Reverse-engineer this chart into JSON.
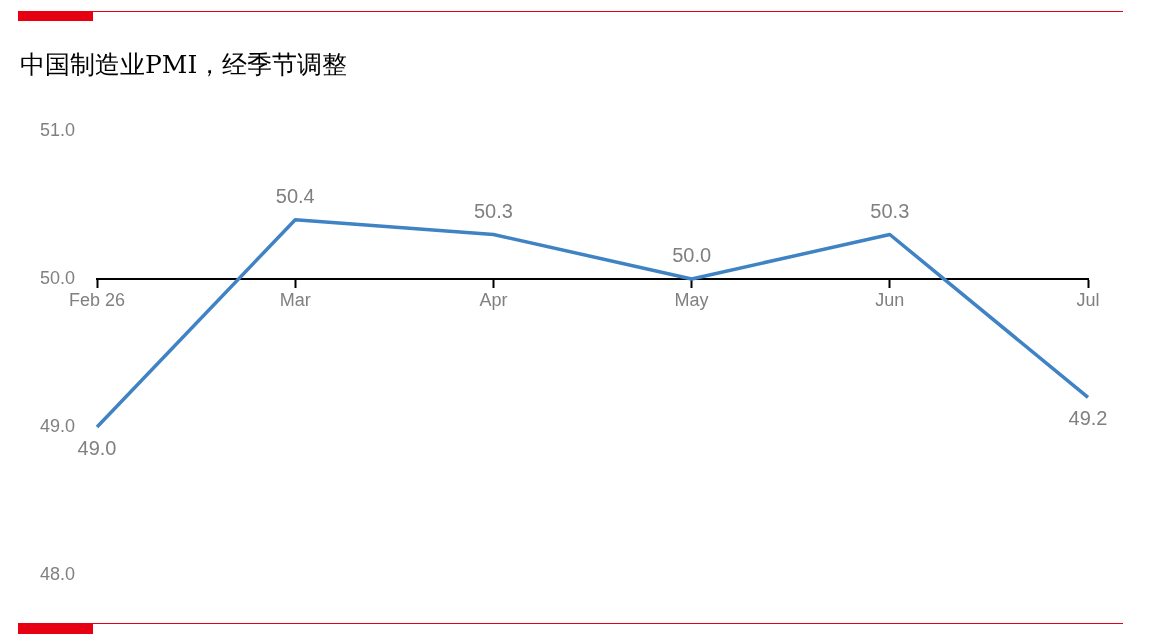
{
  "chart_data": {
    "type": "line",
    "title": "中国制造业PMI，经季节调整",
    "categories": [
      "Feb 26",
      "Mar",
      "Apr",
      "May",
      "Jun",
      "Jul"
    ],
    "series": [
      {
        "color": "#3f83c5",
        "values": [
          49.0,
          50.4,
          50.3,
          50.0,
          50.3,
          49.2
        ],
        "value_labels": [
          "49.0",
          "50.4",
          "50.3",
          "50.0",
          "50.3",
          "49.2"
        ]
      }
    ],
    "ylim": [
      48,
      51
    ],
    "yticks": [
      {
        "value": 48,
        "label": "48.0"
      },
      {
        "value": 49,
        "label": "49.0"
      },
      {
        "value": 50,
        "label": "50.0"
      },
      {
        "value": 51,
        "label": "51.0"
      }
    ],
    "grid": false,
    "legend": false,
    "marker": "none",
    "line_style": "solid"
  }
}
